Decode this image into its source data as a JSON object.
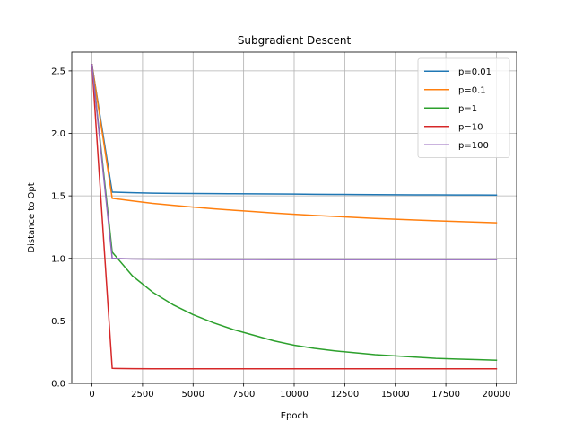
{
  "chart_data": {
    "type": "line",
    "title": "Subgradient Descent",
    "xlabel": "Epoch",
    "ylabel": "Distance to Opt",
    "xlim": [
      -1000,
      21000
    ],
    "ylim": [
      0,
      2.65
    ],
    "xticks": [
      0,
      2500,
      5000,
      7500,
      10000,
      12500,
      15000,
      17500,
      20000
    ],
    "yticks": [
      0.0,
      0.5,
      1.0,
      1.5,
      2.0,
      2.5
    ],
    "xtick_labels": [
      "0",
      "2500",
      "5000",
      "7500",
      "10000",
      "12500",
      "15000",
      "17500",
      "20000"
    ],
    "ytick_labels": [
      "0.0",
      "0.5",
      "1.0",
      "1.5",
      "2.0",
      "2.5"
    ],
    "grid": true,
    "legend_position": "top-right",
    "x": [
      0,
      1000,
      2000,
      3000,
      4000,
      5000,
      6000,
      7000,
      8000,
      9000,
      10000,
      11000,
      12000,
      13000,
      14000,
      15000,
      16000,
      17000,
      18000,
      19000,
      20000
    ],
    "series": [
      {
        "name": "p=0.01",
        "color": "#1f77b4",
        "values": [
          2.55,
          1.53,
          1.525,
          1.522,
          1.52,
          1.519,
          1.518,
          1.517,
          1.516,
          1.515,
          1.514,
          1.513,
          1.512,
          1.511,
          1.51,
          1.509,
          1.508,
          1.508,
          1.507,
          1.507,
          1.506
        ]
      },
      {
        "name": "p=0.1",
        "color": "#ff7f0e",
        "values": [
          2.55,
          1.48,
          1.46,
          1.44,
          1.425,
          1.41,
          1.397,
          1.385,
          1.374,
          1.363,
          1.353,
          1.344,
          1.336,
          1.328,
          1.32,
          1.313,
          1.307,
          1.301,
          1.295,
          1.29,
          1.285
        ]
      },
      {
        "name": "p=1",
        "color": "#2ca02c",
        "values": [
          2.55,
          1.05,
          0.86,
          0.73,
          0.63,
          0.55,
          0.485,
          0.43,
          0.385,
          0.34,
          0.305,
          0.28,
          0.26,
          0.245,
          0.23,
          0.22,
          0.21,
          0.2,
          0.195,
          0.19,
          0.185
        ]
      },
      {
        "name": "p=10",
        "color": "#d62728",
        "values": [
          2.55,
          0.12,
          0.118,
          0.117,
          0.117,
          0.117,
          0.117,
          0.117,
          0.117,
          0.117,
          0.117,
          0.117,
          0.117,
          0.117,
          0.117,
          0.117,
          0.117,
          0.117,
          0.117,
          0.117,
          0.117
        ]
      },
      {
        "name": "p=100",
        "color": "#9467bd",
        "values": [
          2.55,
          1.0,
          0.995,
          0.993,
          0.992,
          0.992,
          0.991,
          0.991,
          0.991,
          0.99,
          0.99,
          0.99,
          0.99,
          0.99,
          0.99,
          0.99,
          0.99,
          0.99,
          0.99,
          0.99,
          0.99
        ]
      }
    ]
  }
}
